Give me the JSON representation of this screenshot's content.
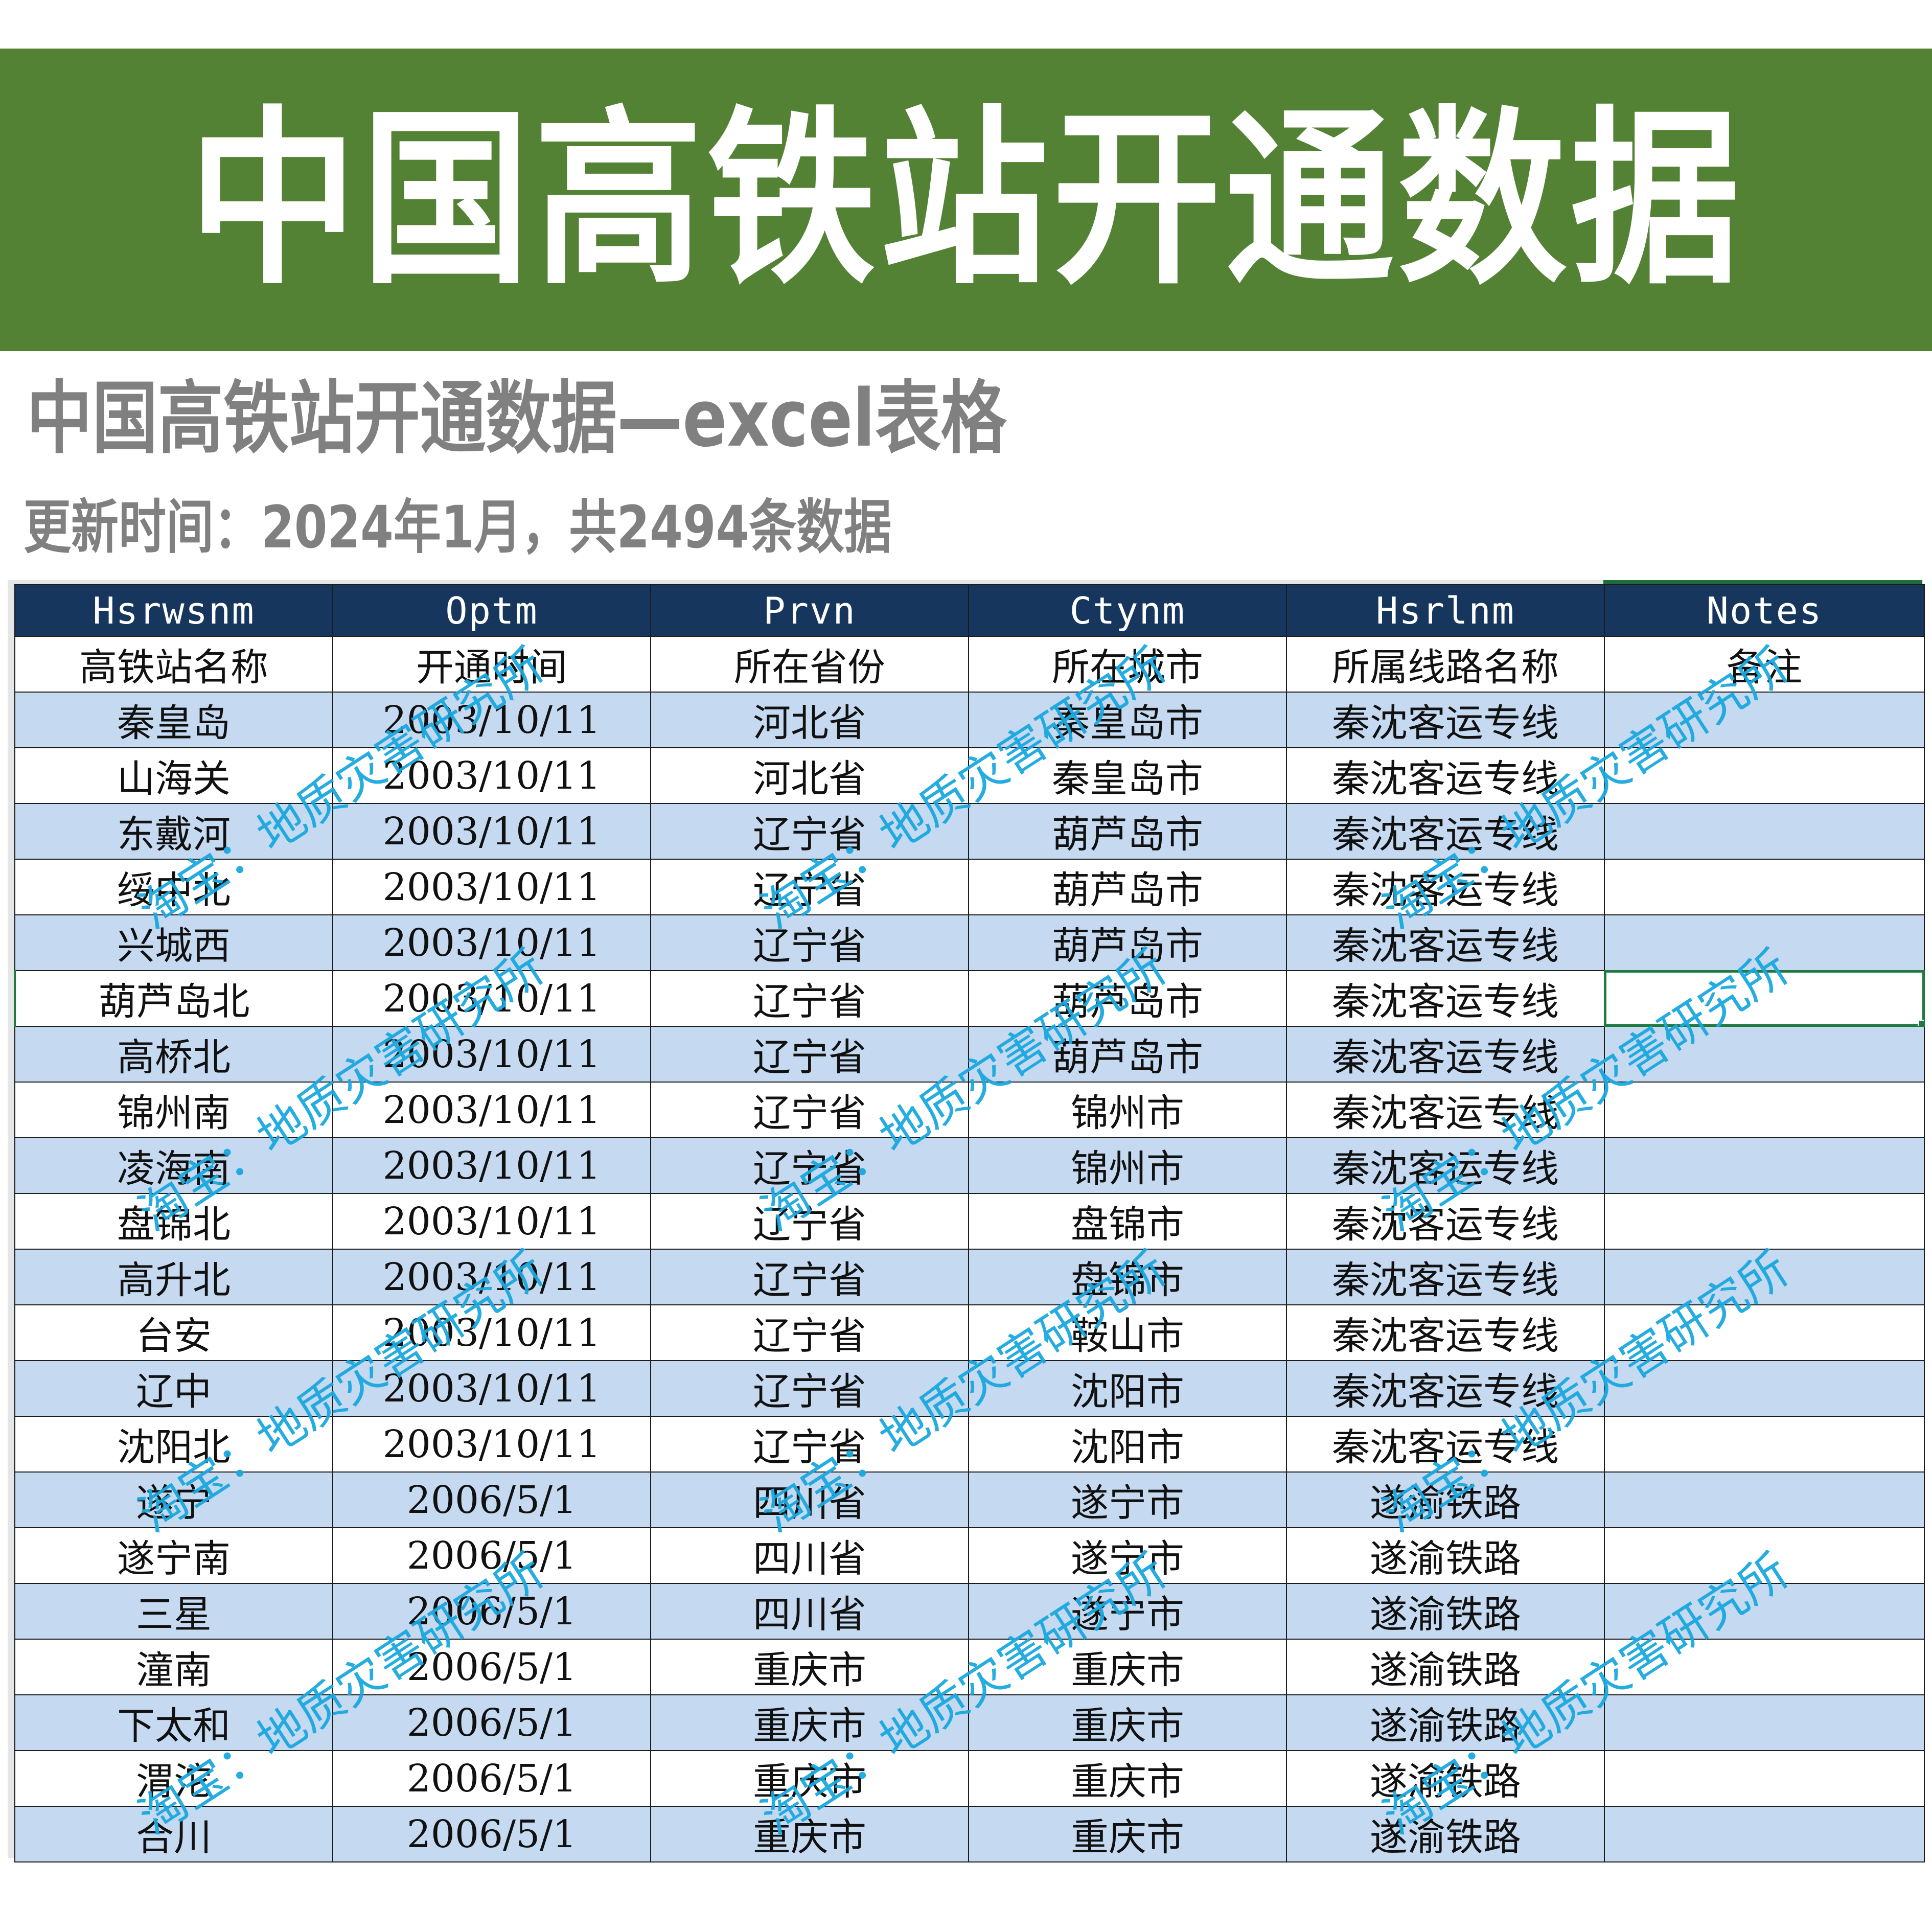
{
  "banner": {
    "title": "中国高铁站开通数据",
    "background_color": "#548235"
  },
  "subtitle": "中国高铁站开通数据—excel表格",
  "update_info": "更新时间：2024年1月，共2494条数据",
  "table": {
    "header_color": "#17365d",
    "band_color": "#c5d9f1",
    "columns": [
      "Hsrwsnm",
      "Optm",
      "Prvn",
      "Ctynm",
      "Hsrlnm",
      "Notes"
    ],
    "column_labels_cn": [
      "高铁站名称",
      "开通时间",
      "所在省份",
      "所在城市",
      "所属线路名称",
      "备注"
    ],
    "selected_cell": {
      "row": 6,
      "column": "Notes"
    },
    "rows": [
      [
        "秦皇岛",
        "2003/10/11",
        "河北省",
        "秦皇岛市",
        "秦沈客运专线",
        ""
      ],
      [
        "山海关",
        "2003/10/11",
        "河北省",
        "秦皇岛市",
        "秦沈客运专线",
        ""
      ],
      [
        "东戴河",
        "2003/10/11",
        "辽宁省",
        "葫芦岛市",
        "秦沈客运专线",
        ""
      ],
      [
        "绥中北",
        "2003/10/11",
        "辽宁省",
        "葫芦岛市",
        "秦沈客运专线",
        ""
      ],
      [
        "兴城西",
        "2003/10/11",
        "辽宁省",
        "葫芦岛市",
        "秦沈客运专线",
        ""
      ],
      [
        "葫芦岛北",
        "2003/10/11",
        "辽宁省",
        "葫芦岛市",
        "秦沈客运专线",
        ""
      ],
      [
        "高桥北",
        "2003/10/11",
        "辽宁省",
        "葫芦岛市",
        "秦沈客运专线",
        ""
      ],
      [
        "锦州南",
        "2003/10/11",
        "辽宁省",
        "锦州市",
        "秦沈客运专线",
        ""
      ],
      [
        "凌海南",
        "2003/10/11",
        "辽宁省",
        "锦州市",
        "秦沈客运专线",
        ""
      ],
      [
        "盘锦北",
        "2003/10/11",
        "辽宁省",
        "盘锦市",
        "秦沈客运专线",
        ""
      ],
      [
        "高升北",
        "2003/10/11",
        "辽宁省",
        "盘锦市",
        "秦沈客运专线",
        ""
      ],
      [
        "台安",
        "2003/10/11",
        "辽宁省",
        "鞍山市",
        "秦沈客运专线",
        ""
      ],
      [
        "辽中",
        "2003/10/11",
        "辽宁省",
        "沈阳市",
        "秦沈客运专线",
        ""
      ],
      [
        "沈阳北",
        "2003/10/11",
        "辽宁省",
        "沈阳市",
        "秦沈客运专线",
        ""
      ],
      [
        "遂宁",
        "2006/5/1",
        "四川省",
        "遂宁市",
        "遂渝铁路",
        ""
      ],
      [
        "遂宁南",
        "2006/5/1",
        "四川省",
        "遂宁市",
        "遂渝铁路",
        ""
      ],
      [
        "三星",
        "2006/5/1",
        "四川省",
        "遂宁市",
        "遂渝铁路",
        ""
      ],
      [
        "潼南",
        "2006/5/1",
        "重庆市",
        "重庆市",
        "遂渝铁路",
        ""
      ],
      [
        "下太和",
        "2006/5/1",
        "重庆市",
        "重庆市",
        "遂渝铁路",
        ""
      ],
      [
        "渭沱",
        "2006/5/1",
        "重庆市",
        "重庆市",
        "遂渝铁路",
        ""
      ],
      [
        "合川",
        "2006/5/1",
        "重庆市",
        "重庆市",
        "遂渝铁路",
        ""
      ]
    ]
  },
  "watermark": {
    "text": "淘宝：地质灾害研究所",
    "color": "#1aa8e0"
  }
}
